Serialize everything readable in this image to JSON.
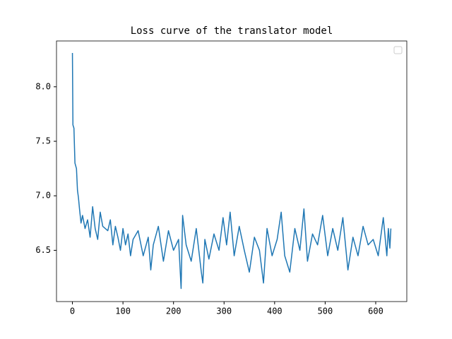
{
  "chart_data": {
    "type": "line",
    "title": "Loss curve of the translator model",
    "x": [
      0,
      1,
      3,
      5,
      8,
      10,
      12,
      14,
      17,
      20,
      25,
      30,
      35,
      40,
      45,
      50,
      55,
      60,
      70,
      75,
      80,
      85,
      90,
      95,
      100,
      105,
      110,
      115,
      120,
      130,
      140,
      150,
      155,
      160,
      170,
      180,
      190,
      200,
      210,
      215,
      218,
      225,
      235,
      245,
      255,
      258,
      262,
      270,
      280,
      290,
      298,
      305,
      312,
      320,
      330,
      340,
      350,
      360,
      370,
      378,
      385,
      395,
      405,
      413,
      420,
      430,
      440,
      450,
      458,
      465,
      475,
      485,
      495,
      505,
      515,
      525,
      535,
      545,
      555,
      565,
      575,
      585,
      595,
      605,
      615,
      622,
      625,
      628,
      630
    ],
    "series": [
      {
        "color": "#1f77b4",
        "values": [
          8.31,
          7.65,
          7.62,
          7.3,
          7.25,
          7.05,
          6.98,
          6.88,
          6.75,
          6.82,
          6.7,
          6.78,
          6.62,
          6.9,
          6.7,
          6.6,
          6.85,
          6.72,
          6.68,
          6.78,
          6.55,
          6.72,
          6.62,
          6.5,
          6.7,
          6.55,
          6.65,
          6.45,
          6.6,
          6.68,
          6.45,
          6.62,
          6.32,
          6.55,
          6.72,
          6.4,
          6.68,
          6.5,
          6.6,
          6.15,
          6.82,
          6.55,
          6.4,
          6.7,
          6.3,
          6.2,
          6.6,
          6.42,
          6.65,
          6.5,
          6.8,
          6.55,
          6.85,
          6.45,
          6.72,
          6.5,
          6.3,
          6.62,
          6.5,
          6.2,
          6.7,
          6.45,
          6.6,
          6.85,
          6.45,
          6.3,
          6.7,
          6.5,
          6.88,
          6.4,
          6.65,
          6.55,
          6.82,
          6.45,
          6.7,
          6.5,
          6.8,
          6.32,
          6.62,
          6.45,
          6.72,
          6.55,
          6.6,
          6.45,
          6.8,
          6.45,
          6.7,
          6.52,
          6.7
        ]
      }
    ],
    "xlim": [
      -31.5,
      661.5
    ],
    "ylim": [
      6.03,
      8.42
    ],
    "xticks": [
      0,
      100,
      200,
      300,
      400,
      500,
      600
    ],
    "yticks": [
      6.5,
      {
        "value": 7,
        "label": "7.0"
      },
      7.5,
      {
        "value": 8,
        "label": "8.0"
      }
    ],
    "grid": false,
    "legend": "upper right"
  }
}
